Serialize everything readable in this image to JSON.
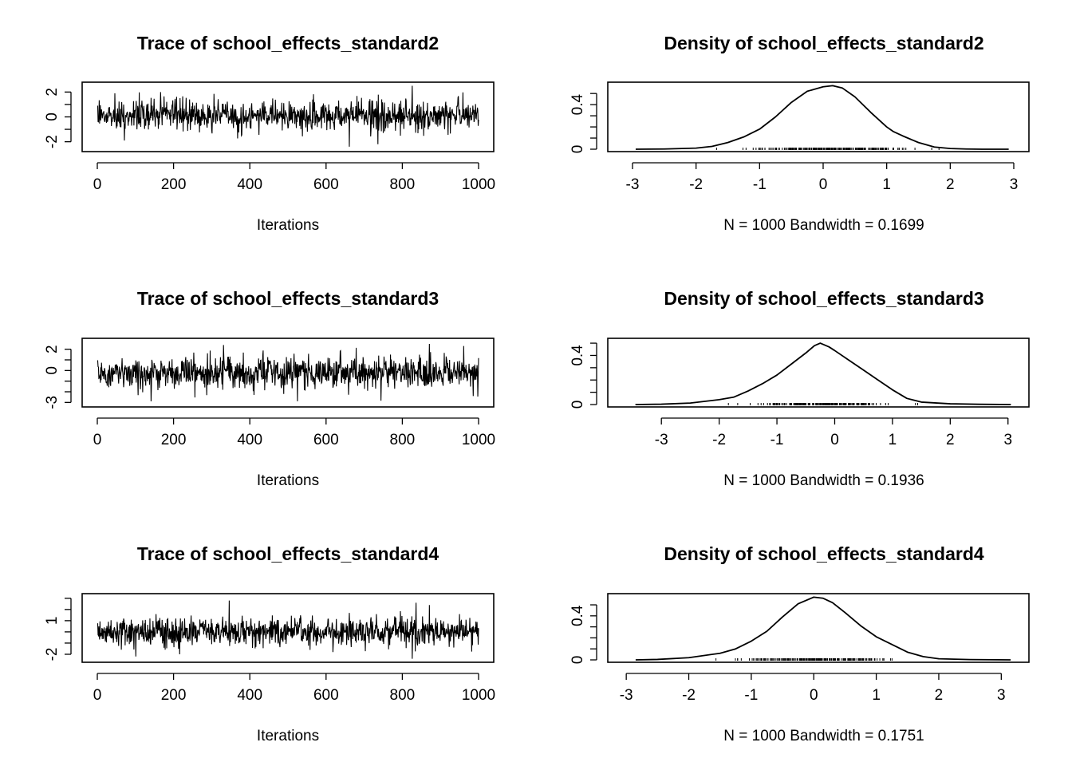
{
  "chart_data": [
    {
      "type": "line",
      "title": "Trace of school_effects_standard2",
      "xlabel": "Iterations",
      "xlim": [
        0,
        1000
      ],
      "ylim": [
        -2.6,
        2.6
      ],
      "xticks": [
        0,
        200,
        400,
        600,
        800,
        1000
      ],
      "yticks": [
        -2,
        0,
        2
      ],
      "seed": 2,
      "mean": 0.1,
      "sd": 0.6,
      "spikes": [
        [
          825,
          2.5
        ],
        [
          660,
          -2.4
        ],
        [
          735,
          -2.2
        ],
        [
          70,
          -1.9
        ],
        [
          165,
          2.0
        ],
        [
          45,
          1.9
        ]
      ]
    },
    {
      "type": "line",
      "title": "Density of school_effects_standard2",
      "xlabel": "N = 1000   Bandwidth = 0.1699",
      "xlim": [
        -3,
        3
      ],
      "ylim": [
        0,
        0.58
      ],
      "xticks": [
        -3,
        -2,
        -1,
        0,
        1,
        2,
        3
      ],
      "yticks": [
        0.0,
        0.4
      ],
      "x": [
        -2.95,
        -2.5,
        -2.0,
        -1.75,
        -1.5,
        -1.25,
        -1.0,
        -0.75,
        -0.5,
        -0.25,
        0.0,
        0.15,
        0.3,
        0.5,
        0.75,
        1.0,
        1.1,
        1.25,
        1.5,
        1.75,
        2.0,
        2.25,
        2.5,
        2.92
      ],
      "y": [
        0.0,
        0.002,
        0.01,
        0.025,
        0.06,
        0.11,
        0.18,
        0.29,
        0.42,
        0.52,
        0.56,
        0.57,
        0.55,
        0.47,
        0.33,
        0.2,
        0.16,
        0.12,
        0.06,
        0.02,
        0.006,
        0.002,
        0.0,
        0.0
      ],
      "rug_range": [
        -2.9,
        2.9
      ]
    },
    {
      "type": "line",
      "title": "Trace of school_effects_standard3",
      "xlabel": "Iterations",
      "xlim": [
        0,
        1000
      ],
      "ylim": [
        -3.2,
        2.8
      ],
      "xticks": [
        0,
        200,
        400,
        600,
        800,
        1000
      ],
      "yticks": [
        -3,
        0,
        2
      ],
      "seed": 3,
      "mean": -0.2,
      "sd": 0.75,
      "spikes": [
        [
          330,
          2.4
        ],
        [
          870,
          2.5
        ],
        [
          960,
          2.3
        ],
        [
          140,
          -2.9
        ],
        [
          410,
          -2.3
        ],
        [
          985,
          -2.4
        ]
      ]
    },
    {
      "type": "line",
      "title": "Density of school_effects_standard3",
      "xlabel": "N = 1000   Bandwidth = 0.1936",
      "xlim": [
        -3.5,
        3.1
      ],
      "ylim": [
        0,
        0.52
      ],
      "xticks": [
        -3,
        -2,
        -1,
        0,
        1,
        2,
        3
      ],
      "yticks": [
        0.0,
        0.4
      ],
      "x": [
        -3.45,
        -3.0,
        -2.5,
        -2.0,
        -1.75,
        -1.5,
        -1.25,
        -1.0,
        -0.75,
        -0.5,
        -0.35,
        -0.25,
        -0.1,
        0.0,
        0.25,
        0.5,
        0.75,
        1.0,
        1.25,
        1.5,
        2.0,
        2.5,
        3.05
      ],
      "y": [
        0.0,
        0.003,
        0.012,
        0.04,
        0.06,
        0.11,
        0.17,
        0.24,
        0.33,
        0.42,
        0.48,
        0.5,
        0.47,
        0.44,
        0.36,
        0.28,
        0.2,
        0.12,
        0.05,
        0.02,
        0.006,
        0.002,
        0.0
      ],
      "rug_range": [
        -3.2,
        3.0
      ]
    },
    {
      "type": "line",
      "title": "Trace of school_effects_standard4",
      "xlabel": "Iterations",
      "xlim": [
        0,
        1000
      ],
      "ylim": [
        -2.5,
        3.2
      ],
      "xticks": [
        0,
        200,
        400,
        600,
        800,
        1000
      ],
      "yticks": [
        -2,
        1
      ],
      "seed": 4,
      "mean": 0.0,
      "sd": 0.62,
      "spikes": [
        [
          345,
          2.8
        ],
        [
          835,
          2.6
        ],
        [
          870,
          2.4
        ],
        [
          100,
          -2.2
        ],
        [
          825,
          -2.4
        ],
        [
          215,
          -2.0
        ]
      ]
    },
    {
      "type": "line",
      "title": "Density of school_effects_standard4",
      "xlabel": "N = 1000   Bandwidth = 0.1751",
      "xlim": [
        -2.9,
        3.2
      ],
      "ylim": [
        0,
        0.58
      ],
      "xticks": [
        -3,
        -2,
        -1,
        0,
        1,
        2,
        3
      ],
      "yticks": [
        0.0,
        0.4
      ],
      "x": [
        -2.85,
        -2.5,
        -2.0,
        -1.5,
        -1.25,
        -1.0,
        -0.75,
        -0.5,
        -0.25,
        0.0,
        0.15,
        0.3,
        0.5,
        0.75,
        1.0,
        1.25,
        1.5,
        1.75,
        2.0,
        2.5,
        3.15
      ],
      "y": [
        0.0,
        0.004,
        0.02,
        0.06,
        0.1,
        0.17,
        0.26,
        0.39,
        0.51,
        0.57,
        0.56,
        0.52,
        0.43,
        0.31,
        0.21,
        0.14,
        0.07,
        0.03,
        0.01,
        0.003,
        0.0
      ],
      "rug_range": [
        -2.7,
        3.0
      ]
    }
  ]
}
